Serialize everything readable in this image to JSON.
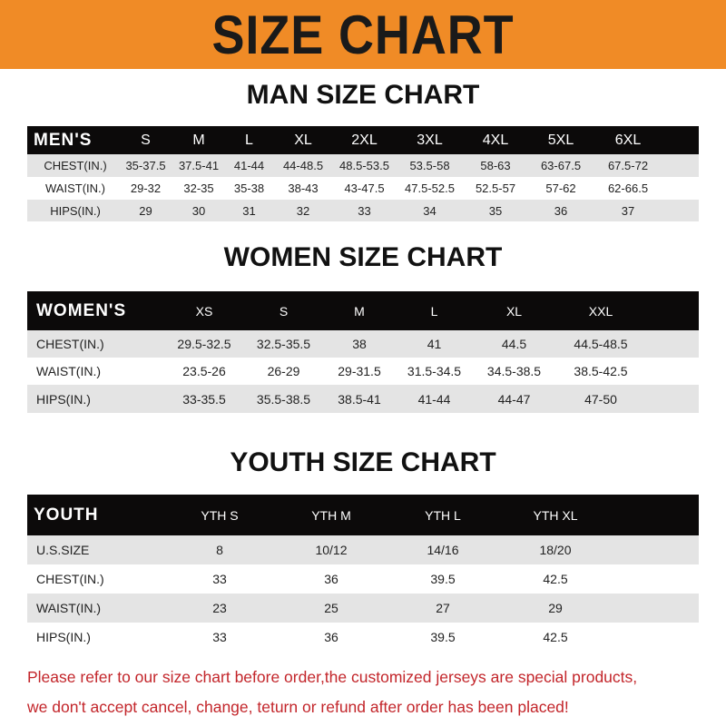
{
  "title": "SIZE CHART",
  "men": {
    "title": "MAN SIZE CHART",
    "header": [
      "MEN'S",
      "S",
      "M",
      "L",
      "XL",
      "2XL",
      "3XL",
      "4XL",
      "5XL",
      "6XL"
    ],
    "rows": [
      [
        "CHEST(IN.)",
        "35-37.5",
        "37.5-41",
        "41-44",
        "44-48.5",
        "48.5-53.5",
        "53.5-58",
        "58-63",
        "63-67.5",
        "67.5-72"
      ],
      [
        "WAIST(IN.)",
        "29-32",
        "32-35",
        "35-38",
        "38-43",
        "43-47.5",
        "47.5-52.5",
        "52.5-57",
        "57-62",
        "62-66.5"
      ],
      [
        "HIPS(IN.)",
        "29",
        "30",
        "31",
        "32",
        "33",
        "34",
        "35",
        "36",
        "37"
      ]
    ]
  },
  "women": {
    "title": "WOMEN SIZE CHART",
    "header": [
      "WOMEN'S",
      "XS",
      "S",
      "M",
      "L",
      "XL",
      "XXL"
    ],
    "rows": [
      [
        "CHEST(IN.)",
        "29.5-32.5",
        "32.5-35.5",
        "38",
        "41",
        "44.5",
        "44.5-48.5"
      ],
      [
        "WAIST(IN.)",
        "23.5-26",
        "26-29",
        "29-31.5",
        "31.5-34.5",
        "34.5-38.5",
        "38.5-42.5"
      ],
      [
        "HIPS(IN.)",
        "33-35.5",
        "35.5-38.5",
        "38.5-41",
        "41-44",
        "44-47",
        "47-50"
      ]
    ]
  },
  "youth": {
    "title": "YOUTH SIZE CHART",
    "header": [
      "YOUTH",
      "YTH S",
      "YTH M",
      "YTH L",
      "YTH XL"
    ],
    "rows": [
      [
        "U.S.SIZE",
        "8",
        "10/12",
        "14/16",
        "18/20"
      ],
      [
        "CHEST(IN.)",
        "33",
        "36",
        "39.5",
        "42.5"
      ],
      [
        "WAIST(IN.)",
        "23",
        "25",
        "27",
        "29"
      ],
      [
        "HIPS(IN.)",
        "33",
        "36",
        "39.5",
        "42.5"
      ]
    ]
  },
  "notice": [
    "Please refer to our size chart before order,the customized jerseys are special products,",
    "we don't accept cancel, change, teturn or refund after order has been placed!"
  ],
  "colors": {
    "banner": "#f08b26",
    "header_row": "#0c0a0a",
    "notice": "#c3262b"
  }
}
